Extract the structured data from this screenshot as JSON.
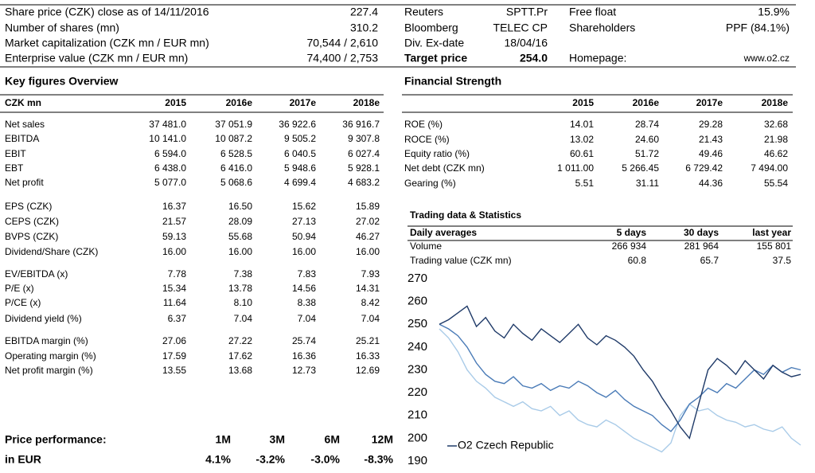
{
  "header": {
    "left": [
      [
        "Share price (CZK) close as of 14/11/2016",
        "227.4"
      ],
      [
        "Number of shares (mn)",
        "310.2"
      ],
      [
        "Market capitalization (CZK mn / EUR mn)",
        "70,544 / 2,610"
      ],
      [
        "Enterprise value (CZK mn / EUR mn)",
        "74,400 / 2,753"
      ]
    ],
    "middle": [
      [
        "Reuters",
        "SPTT.Pr"
      ],
      [
        "Bloomberg",
        "TELEC CP"
      ],
      [
        "Div. Ex-date",
        "18/04/16"
      ],
      [
        "Target price",
        "254.0"
      ]
    ],
    "right": [
      [
        "Free float",
        "15.9%"
      ],
      [
        "Shareholders",
        "PPF (84.1%)"
      ],
      [
        "Homepage:",
        "www.o2.cz"
      ]
    ]
  },
  "key_figures": {
    "title": "Key figures Overview",
    "columns": [
      "CZK mn",
      "2015",
      "2016e",
      "2017e",
      "2018e"
    ],
    "groups": [
      [
        [
          "Net sales",
          "37 481.0",
          "37 051.9",
          "36 922.6",
          "36 916.7"
        ],
        [
          "EBITDA",
          "10 141.0",
          "10 087.2",
          "9 505.2",
          "9 307.8"
        ],
        [
          "EBIT",
          "6 594.0",
          "6 528.5",
          "6 040.5",
          "6 027.4"
        ],
        [
          "EBT",
          "6 438.0",
          "6 416.0",
          "5 948.6",
          "5 928.1"
        ],
        [
          "Net profit",
          "5 077.0",
          "5 068.6",
          "4 699.4",
          "4 683.2"
        ]
      ],
      [
        [
          "EPS (CZK)",
          "16.37",
          "16.50",
          "15.62",
          "15.89"
        ],
        [
          "CEPS (CZK)",
          "21.57",
          "28.09",
          "27.13",
          "27.02"
        ],
        [
          "BVPS (CZK)",
          "59.13",
          "55.68",
          "50.94",
          "46.27"
        ],
        [
          "Dividend/Share (CZK)",
          "16.00",
          "16.00",
          "16.00",
          "16.00"
        ]
      ],
      [
        [
          "EV/EBITDA (x)",
          "7.78",
          "7.38",
          "7.83",
          "7.93"
        ],
        [
          "P/E (x)",
          "15.34",
          "13.78",
          "14.56",
          "14.31"
        ],
        [
          "P/CE (x)",
          "11.64",
          "8.10",
          "8.38",
          "8.42"
        ],
        [
          "Dividend yield (%)",
          "6.37",
          "7.04",
          "7.04",
          "7.04"
        ]
      ],
      [
        [
          "EBITDA margin (%)",
          "27.06",
          "27.22",
          "25.74",
          "25.21"
        ],
        [
          "Operating margin (%)",
          "17.59",
          "17.62",
          "16.36",
          "16.33"
        ],
        [
          "Net profit margin (%)",
          "13.55",
          "13.68",
          "12.73",
          "12.69"
        ]
      ]
    ]
  },
  "financial_strength": {
    "title": "Financial Strength",
    "columns": [
      "2015",
      "2016e",
      "2017e",
      "2018e"
    ],
    "rows": [
      [
        "ROE (%)",
        "14.01",
        "28.74",
        "29.28",
        "32.68"
      ],
      [
        "ROCE (%)",
        "13.02",
        "24.60",
        "21.43",
        "21.98"
      ],
      [
        "Equity ratio (%)",
        "60.61",
        "51.72",
        "49.46",
        "46.62"
      ],
      [
        "Net debt (CZK mn)",
        "1 011.00",
        "5 266.45",
        "6 729.42",
        "7 494.00"
      ],
      [
        "Gearing (%)",
        "5.51",
        "31.11",
        "44.36",
        "55.54"
      ]
    ]
  },
  "trading": {
    "title": "Trading data & Statistics",
    "columns": [
      "Daily averages",
      "5 days",
      "30 days",
      "last year"
    ],
    "rows": [
      [
        "Volume",
        "266 934",
        "281 964",
        "155 801"
      ],
      [
        "Trading value (CZK mn)",
        "60.8",
        "65.7",
        "37.5"
      ]
    ]
  },
  "price_performance": {
    "columns": [
      "Price performance:",
      "1M",
      "3M",
      "6M",
      "12M"
    ],
    "row": [
      "in EUR",
      "4.1%",
      "-3.2%",
      "-3.0%",
      "-8.3%"
    ]
  },
  "chart_data": {
    "type": "line",
    "ylim": [
      190,
      270
    ],
    "yticks": [
      190,
      200,
      210,
      220,
      230,
      240,
      250,
      260,
      270
    ],
    "series": [
      {
        "name": "O2 Czech Republic",
        "color": "#1f3a68",
        "values": [
          250,
          252,
          255,
          258,
          249,
          253,
          247,
          244,
          250,
          246,
          243,
          248,
          245,
          242,
          246,
          250,
          244,
          241,
          245,
          243,
          240,
          236,
          230,
          225,
          218,
          212,
          205,
          200,
          215,
          230,
          235,
          232,
          228,
          234,
          230,
          226,
          232,
          229,
          227,
          228
        ]
      },
      {
        "color": "#4a7bb7",
        "values": [
          250,
          248,
          245,
          240,
          233,
          228,
          225,
          224,
          227,
          223,
          222,
          224,
          221,
          223,
          222,
          225,
          223,
          220,
          218,
          221,
          217,
          214,
          212,
          210,
          206,
          203,
          208,
          215,
          218,
          222,
          220,
          224,
          222,
          226,
          230,
          228,
          232,
          229,
          231,
          230
        ]
      },
      {
        "color": "#a9cbe8",
        "values": [
          248,
          244,
          238,
          230,
          225,
          222,
          218,
          216,
          214,
          216,
          213,
          212,
          214,
          210,
          212,
          208,
          206,
          205,
          208,
          206,
          203,
          200,
          198,
          196,
          194,
          198,
          210,
          215,
          212,
          213,
          210,
          208,
          207,
          205,
          206,
          204,
          203,
          205,
          200,
          197
        ]
      }
    ]
  }
}
